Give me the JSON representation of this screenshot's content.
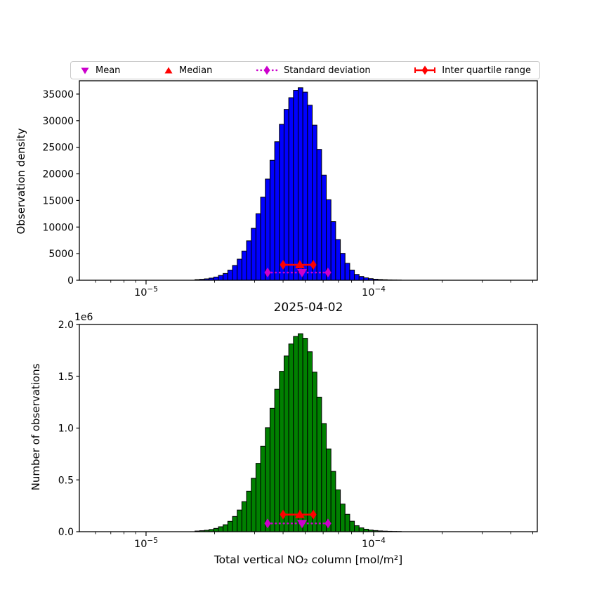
{
  "chart_data": {
    "type": "bar",
    "subtype": "histogram-pair-log-x",
    "x_axis": {
      "scale": "log",
      "label": "Total vertical NO₂ column [mol/m²]",
      "major_tick_exponents": [
        -5,
        -4
      ],
      "xlim_log10": [
        -5.293,
        -3.281
      ]
    },
    "bins": {
      "log10_start": -4.785,
      "log10_width": 0.0206,
      "count": 44
    },
    "panels": [
      {
        "name": "density",
        "ylabel": "Observation density",
        "bar_color": "#0000ff",
        "ylim": [
          0,
          37500
        ],
        "yticks": [
          0,
          5000,
          10000,
          15000,
          20000,
          25000,
          30000,
          35000
        ],
        "ytick_labels": [
          "0",
          "5000",
          "10000",
          "15000",
          "20000",
          "25000",
          "30000",
          "35000"
        ],
        "values": [
          120,
          180,
          260,
          400,
          600,
          900,
          1270,
          1900,
          2780,
          3960,
          5490,
          7410,
          9760,
          12510,
          15630,
          19020,
          22550,
          26040,
          29310,
          32130,
          34320,
          35710,
          36200,
          35370,
          32910,
          29160,
          24600,
          19770,
          15130,
          11020,
          7650,
          5060,
          3190,
          1910,
          1090,
          700,
          450,
          300,
          200,
          140,
          100,
          70,
          50,
          35
        ],
        "marker_y": {
          "iqr_median": 2900,
          "std_mean": 1450
        }
      },
      {
        "name": "counts",
        "title": "2025-04-02",
        "ylabel": "Number of observations",
        "offset_label": "1e6",
        "bar_color": "#008000",
        "ylim": [
          0,
          2000000
        ],
        "yticks": [
          0,
          500000,
          1000000,
          1500000,
          2000000
        ],
        "ytick_labels": [
          "0.0",
          "0.5",
          "1.0",
          "1.5",
          "2.0"
        ],
        "values": [
          6300,
          9500,
          13700,
          21100,
          31700,
          47500,
          67100,
          100000,
          147000,
          209000,
          290000,
          391000,
          515000,
          660000,
          825000,
          1004000,
          1191000,
          1375000,
          1548000,
          1696000,
          1812000,
          1885000,
          1911000,
          1867000,
          1737000,
          1540000,
          1299000,
          1044000,
          799000,
          582000,
          404000,
          267000,
          168000,
          101000,
          58000,
          37000,
          24000,
          16000,
          11000,
          7400,
          5300,
          3700,
          2600,
          1800
        ],
        "marker_y": {
          "iqr_median": 165000,
          "std_mean": 80000
        }
      }
    ],
    "stats": {
      "mean": 4.845e-05,
      "median": 4.74e-05,
      "std": 1.44e-05,
      "std_low": 3.42e-05,
      "std_high": 6.3e-05,
      "q1": 4e-05,
      "q3": 5.43e-05
    },
    "legend": [
      {
        "label": "Mean",
        "marker": "triangle-down",
        "color_key": "magenta"
      },
      {
        "label": "Median",
        "marker": "triangle-up",
        "color_key": "red"
      },
      {
        "label": "Standard deviation",
        "marker": "diamond-dotted-line",
        "color_key": "magenta"
      },
      {
        "label": "Inter quartile range",
        "marker": "diamond-solid-line-caps",
        "color_key": "red"
      }
    ],
    "colors": {
      "magenta": "#cc00cc",
      "red": "#ff0000",
      "bar_edge": "#000000",
      "axis": "#000000"
    }
  }
}
